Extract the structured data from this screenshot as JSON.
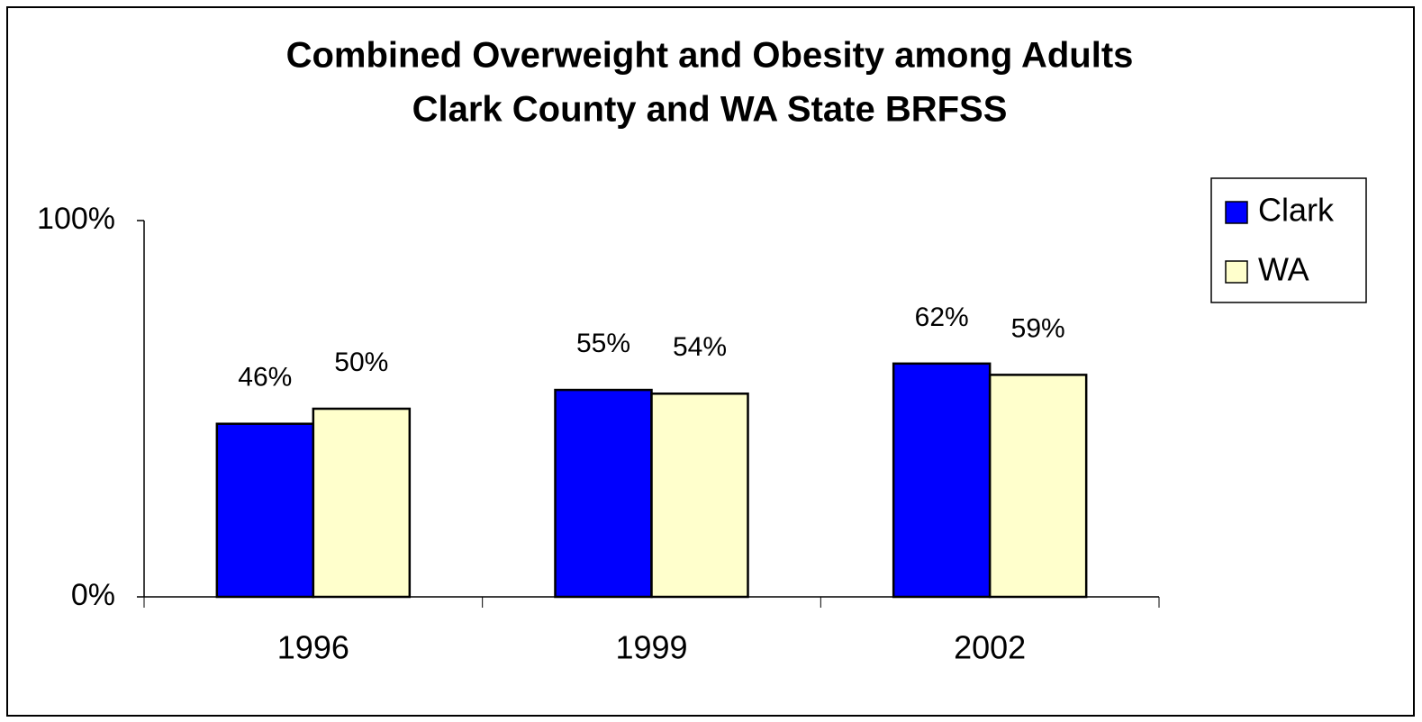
{
  "chart_data": {
    "type": "bar",
    "title": "Combined Overweight and Obesity among Adults",
    "subtitle": "Clark County and WA State BRFSS",
    "categories": [
      "1996",
      "1999",
      "2002"
    ],
    "series": [
      {
        "name": "Clark",
        "color": "#0000ff",
        "values": [
          46,
          55,
          62
        ],
        "value_labels": [
          "46%",
          "55%",
          "62%"
        ]
      },
      {
        "name": "WA",
        "color": "#ffffcc",
        "values": [
          50,
          54,
          59
        ],
        "value_labels": [
          "50%",
          "54%",
          "59%"
        ]
      }
    ],
    "ylim": [
      0,
      100
    ],
    "yticks": [
      {
        "value": 0,
        "label": "0%"
      },
      {
        "value": 100,
        "label": "100%"
      }
    ],
    "legend": "top-right"
  }
}
